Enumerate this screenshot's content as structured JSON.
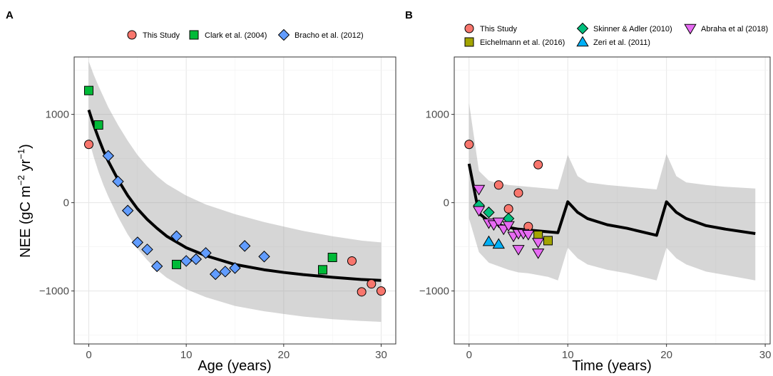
{
  "chart_data": [
    {
      "type": "scatter",
      "panel_label": "A",
      "xlabel": "Age (years)",
      "ylabel": {
        "main": "NEE (gC m",
        "sup": "−2",
        "mid": " yr",
        "sup2": "−1",
        "end": ")"
      },
      "xlim": [
        -1.5,
        31.5
      ],
      "ylim": [
        -1600,
        1650
      ],
      "xticks": [
        0,
        10,
        20,
        30
      ],
      "xtick_labels": [
        "0",
        "10",
        "20",
        "30"
      ],
      "yticks": [
        -1000,
        0,
        1000
      ],
      "ytick_labels": [
        "−1000",
        "0",
        "1000"
      ],
      "grid": true,
      "legend_position": "top",
      "model": {
        "x": [
          0,
          0.5,
          1,
          1.5,
          2,
          3,
          4,
          5,
          6,
          7,
          8,
          10,
          12,
          15,
          18,
          20,
          22,
          25,
          28,
          30
        ],
        "y": [
          1050,
          880,
          730,
          590,
          470,
          260,
          80,
          -70,
          -190,
          -290,
          -380,
          -510,
          -600,
          -700,
          -760,
          -790,
          -815,
          -845,
          -870,
          -880
        ],
        "lower": [
          720,
          520,
          350,
          200,
          70,
          -160,
          -360,
          -520,
          -650,
          -760,
          -850,
          -980,
          -1070,
          -1170,
          -1230,
          -1260,
          -1290,
          -1320,
          -1340,
          -1350
        ],
        "upper": [
          1600,
          1450,
          1320,
          1200,
          1080,
          880,
          700,
          540,
          410,
          300,
          210,
          80,
          -20,
          -130,
          -220,
          -270,
          -320,
          -380,
          -430,
          -450
        ]
      },
      "series": [
        {
          "name": "This Study",
          "marker": "circle",
          "color": "#F8766D",
          "points": [
            [
              0,
              660
            ],
            [
              27,
              -660
            ],
            [
              28,
              -1010
            ],
            [
              29,
              -920
            ],
            [
              30,
              -1000
            ]
          ]
        },
        {
          "name": "Clark et al. (2004)",
          "marker": "square",
          "color": "#00BA38",
          "points": [
            [
              0,
              1270
            ],
            [
              1,
              880
            ],
            [
              9,
              -700
            ],
            [
              24,
              -760
            ],
            [
              25,
              -620
            ]
          ]
        },
        {
          "name": "Bracho et al. (2012)",
          "marker": "diamond",
          "color": "#619CFF",
          "points": [
            [
              2,
              530
            ],
            [
              3,
              240
            ],
            [
              4,
              -90
            ],
            [
              5,
              -450
            ],
            [
              6,
              -530
            ],
            [
              7,
              -720
            ],
            [
              9,
              -380
            ],
            [
              10,
              -660
            ],
            [
              11,
              -640
            ],
            [
              12,
              -570
            ],
            [
              13,
              -810
            ],
            [
              14,
              -780
            ],
            [
              15,
              -740
            ],
            [
              16,
              -490
            ],
            [
              18,
              -610
            ]
          ]
        }
      ]
    },
    {
      "type": "scatter",
      "panel_label": "B",
      "xlabel": "Time (years)",
      "xlim": [
        -1.5,
        30.5
      ],
      "ylim": [
        -1600,
        1650
      ],
      "xticks": [
        0,
        10,
        20,
        30
      ],
      "xtick_labels": [
        "0",
        "10",
        "20",
        "30"
      ],
      "yticks": [
        -1000,
        0,
        1000
      ],
      "ytick_labels": [
        "−1000",
        "0",
        "1000"
      ],
      "grid": true,
      "legend_position": "top",
      "model": {
        "x": [
          0,
          1,
          2,
          3,
          4,
          5,
          6,
          7,
          8,
          9,
          10,
          11,
          12,
          14,
          16,
          19,
          20,
          21,
          22,
          24,
          26,
          29
        ],
        "y": [
          440,
          -120,
          -210,
          -250,
          -280,
          -300,
          -310,
          -320,
          -330,
          -340,
          10,
          -110,
          -180,
          -250,
          -290,
          -370,
          10,
          -110,
          -180,
          -260,
          -300,
          -350
        ],
        "lower": [
          -180,
          -560,
          -680,
          -720,
          -760,
          -790,
          -800,
          -820,
          -840,
          -880,
          -510,
          -630,
          -700,
          -760,
          -800,
          -880,
          -510,
          -630,
          -700,
          -780,
          -820,
          -880
        ],
        "upper": [
          1130,
          360,
          250,
          220,
          200,
          190,
          180,
          170,
          160,
          150,
          540,
          300,
          230,
          200,
          180,
          150,
          550,
          300,
          230,
          200,
          180,
          160
        ]
      },
      "series": [
        {
          "name": "This Study",
          "marker": "circle",
          "color": "#F8766D",
          "points": [
            [
              0,
              660
            ],
            [
              3,
              200
            ],
            [
              4,
              -70
            ],
            [
              5,
              110
            ],
            [
              6,
              -270
            ],
            [
              7,
              430
            ]
          ]
        },
        {
          "name": "Eichelmann et al. (2016)",
          "marker": "square",
          "color": "#A3A500",
          "points": [
            [
              7,
              -370
            ],
            [
              8,
              -430
            ]
          ]
        },
        {
          "name": "Skinner & Adler (2010)",
          "marker": "diamond",
          "color": "#00BF7D",
          "points": [
            [
              1,
              -30
            ],
            [
              2,
              -110
            ],
            [
              4,
              -180
            ]
          ]
        },
        {
          "name": "Zeri et al. (2011)",
          "marker": "triangle-up",
          "color": "#00B0F6",
          "points": [
            [
              2,
              -440
            ],
            [
              3,
              -470
            ]
          ]
        },
        {
          "name": "Abraha et al (2018)",
          "marker": "triangle-down",
          "color": "#E76BF3",
          "points": [
            [
              1,
              150
            ],
            [
              1,
              -90
            ],
            [
              2,
              -230
            ],
            [
              2.5,
              -250
            ],
            [
              3,
              -220
            ],
            [
              3.5,
              -300
            ],
            [
              4,
              -260
            ],
            [
              4.5,
              -380
            ],
            [
              5,
              -350
            ],
            [
              5,
              -530
            ],
            [
              5.5,
              -350
            ],
            [
              6,
              -360
            ],
            [
              7,
              -450
            ],
            [
              7,
              -570
            ]
          ]
        }
      ]
    }
  ]
}
